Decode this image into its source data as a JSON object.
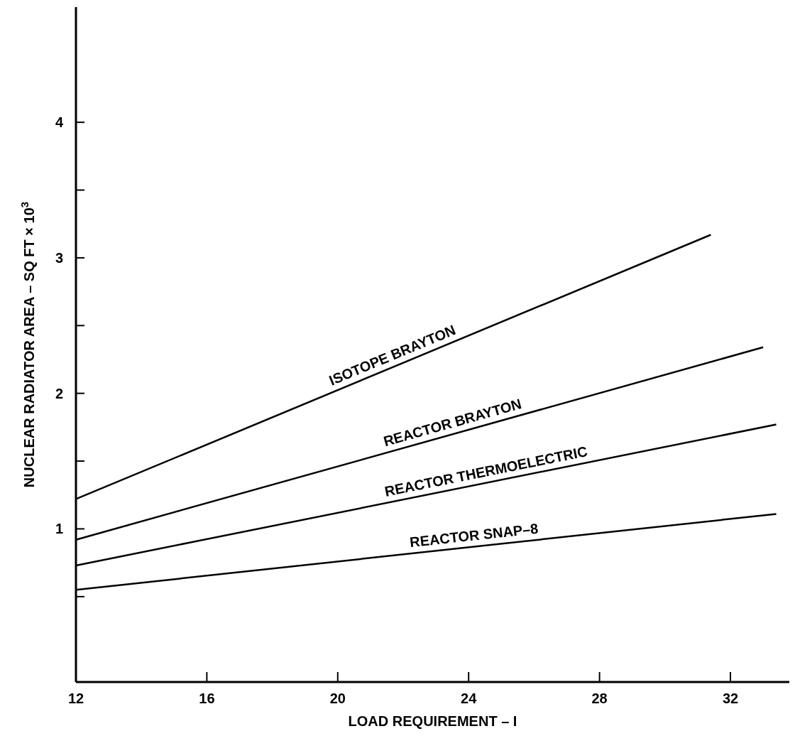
{
  "chart_data": {
    "type": "line",
    "xlabel": "LOAD REQUIREMENT – I",
    "ylabel": "NUCLEAR RADIATOR AREA – SQ FT × 10$^{3}$",
    "xlim": [
      12,
      33.8
    ],
    "xticks": [
      12,
      16,
      20,
      24,
      28,
      32
    ],
    "ylim": [
      -0.13,
      4.85
    ],
    "yticks": [
      {
        "value": 0.5,
        "label": null
      },
      1,
      {
        "value": 1.5,
        "label": null
      },
      2,
      {
        "value": 2.5,
        "label": null
      },
      3,
      {
        "value": 3.5,
        "label": null
      },
      4
    ],
    "grid": false,
    "marker": "none",
    "line_style": "solid",
    "series": [
      {
        "name": "ISOTOPE BRAYTON",
        "color": "#000000",
        "x": [
          12,
          31.4
        ],
        "values": [
          1.22,
          3.17
        ]
      },
      {
        "name": "REACTOR BRAYTON",
        "color": "#000000",
        "x": [
          12,
          33.0
        ],
        "values": [
          0.92,
          2.34
        ]
      },
      {
        "name": "REACTOR THERMOELECTRIC",
        "color": "#000000",
        "x": [
          12,
          33.4
        ],
        "values": [
          0.73,
          1.77
        ]
      },
      {
        "name": "REACTOR SNAP–8",
        "color": "#000000",
        "x": [
          12,
          33.4
        ],
        "values": [
          0.55,
          1.11
        ]
      }
    ]
  }
}
